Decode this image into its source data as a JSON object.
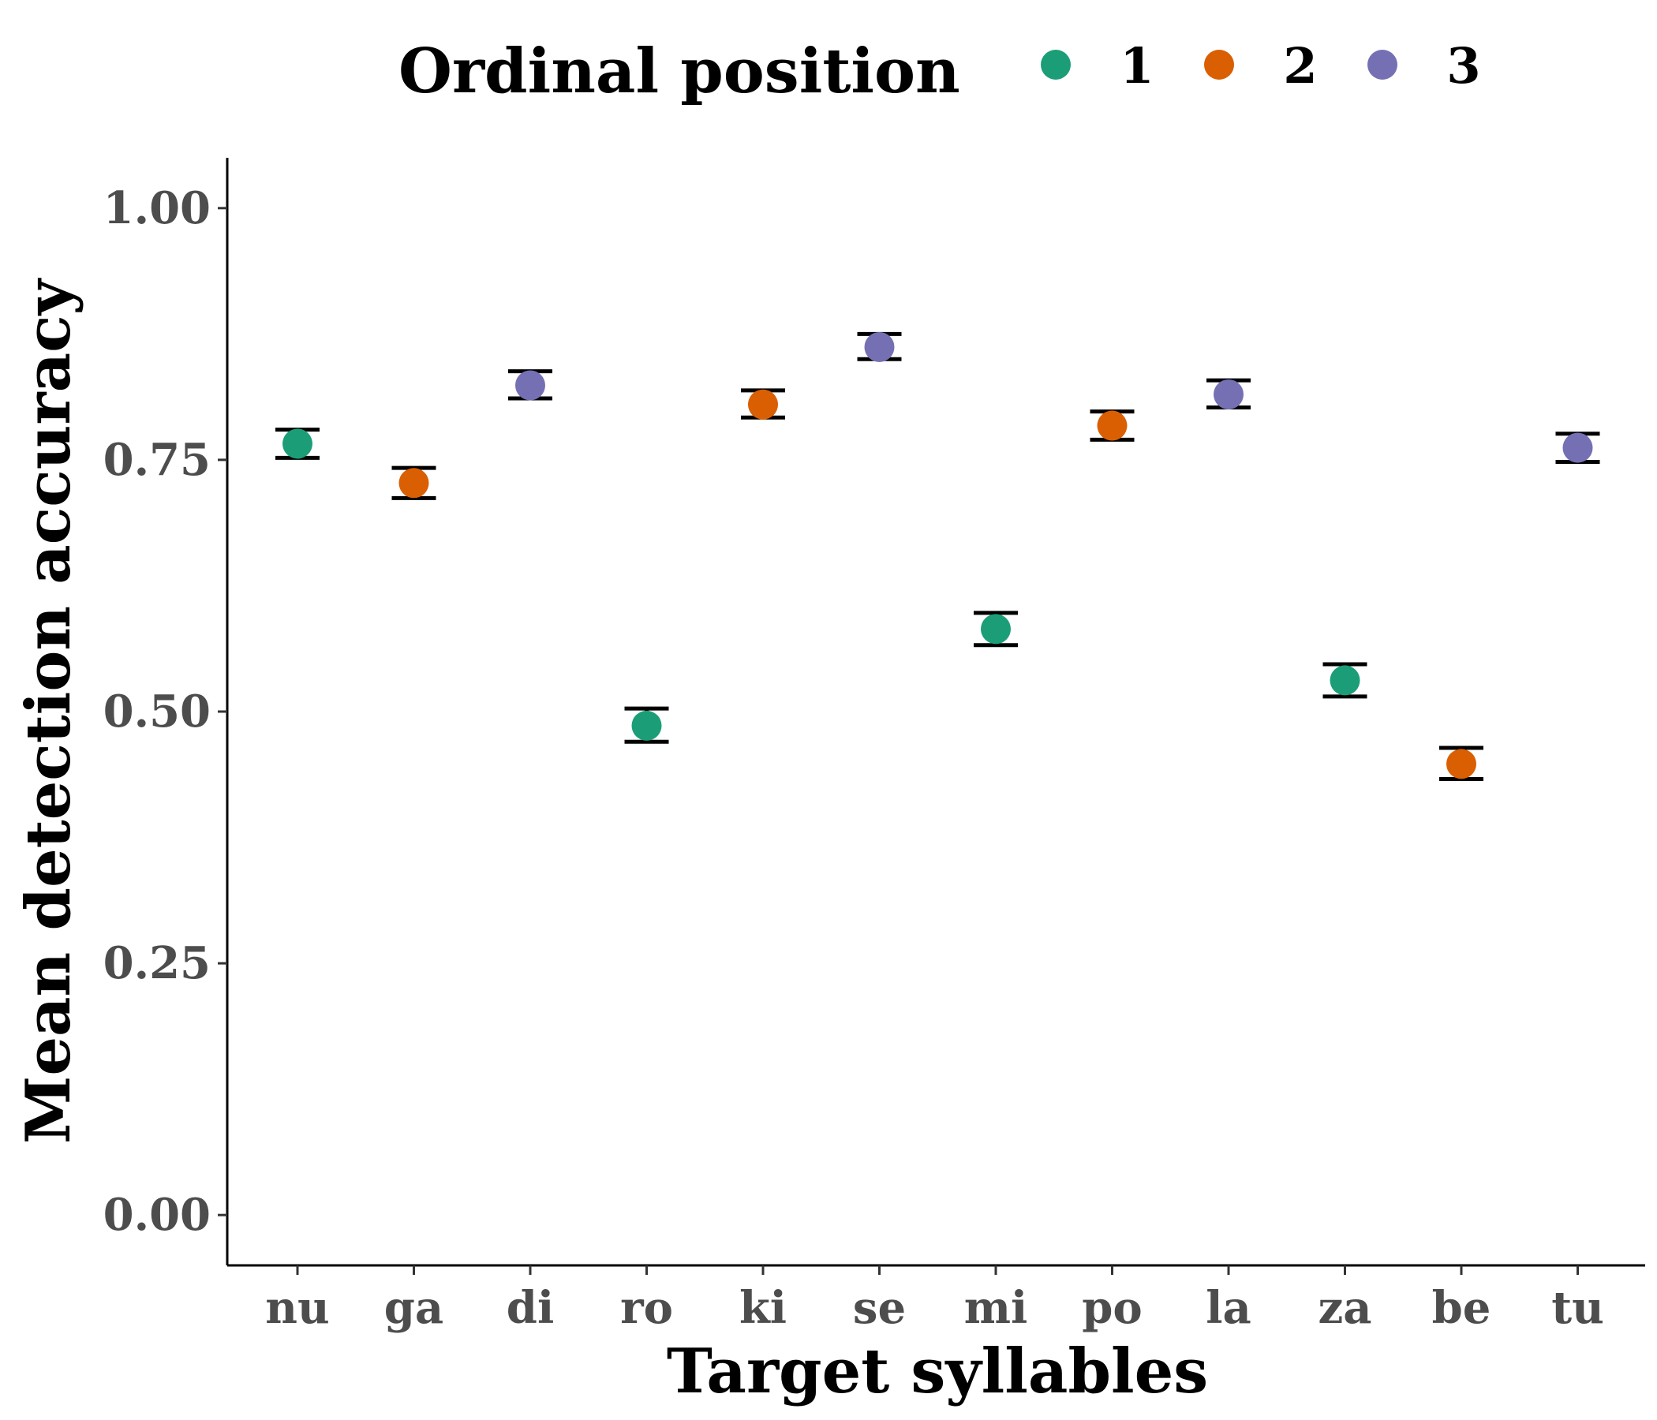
{
  "chart_data": {
    "type": "scatter",
    "xlabel": "Target syllables",
    "ylabel": "Mean detection accuracy",
    "ylim": [
      -0.05,
      1.05
    ],
    "yticks": [
      "0.00",
      "0.25",
      "0.50",
      "0.75",
      "1.00"
    ],
    "ytick_values": [
      0,
      0.25,
      0.5,
      0.75,
      1.0
    ],
    "categories": [
      "nu",
      "ga",
      "di",
      "ro",
      "ki",
      "se",
      "mi",
      "po",
      "la",
      "za",
      "be",
      "tu"
    ],
    "grid": false,
    "legend": {
      "title": "Ordinal position",
      "placement": "top",
      "entries": [
        {
          "label": "1",
          "color": "#1b9e77"
        },
        {
          "label": "2",
          "color": "#d95f02"
        },
        {
          "label": "3",
          "color": "#7570b3"
        }
      ]
    },
    "points": [
      {
        "syllable": "nu",
        "position": "1",
        "mean": 0.766,
        "lower": 0.752,
        "upper": 0.78
      },
      {
        "syllable": "ga",
        "position": "2",
        "mean": 0.727,
        "lower": 0.712,
        "upper": 0.742
      },
      {
        "syllable": "di",
        "position": "3",
        "mean": 0.824,
        "lower": 0.811,
        "upper": 0.838
      },
      {
        "syllable": "ro",
        "position": "1",
        "mean": 0.486,
        "lower": 0.47,
        "upper": 0.503
      },
      {
        "syllable": "ki",
        "position": "2",
        "mean": 0.805,
        "lower": 0.792,
        "upper": 0.819
      },
      {
        "syllable": "se",
        "position": "3",
        "mean": 0.862,
        "lower": 0.85,
        "upper": 0.875
      },
      {
        "syllable": "mi",
        "position": "1",
        "mean": 0.582,
        "lower": 0.566,
        "upper": 0.598
      },
      {
        "syllable": "po",
        "position": "2",
        "mean": 0.784,
        "lower": 0.77,
        "upper": 0.798
      },
      {
        "syllable": "la",
        "position": "3",
        "mean": 0.815,
        "lower": 0.802,
        "upper": 0.829
      },
      {
        "syllable": "za",
        "position": "1",
        "mean": 0.531,
        "lower": 0.515,
        "upper": 0.547
      },
      {
        "syllable": "be",
        "position": "2",
        "mean": 0.448,
        "lower": 0.433,
        "upper": 0.464
      },
      {
        "syllable": "tu",
        "position": "3",
        "mean": 0.762,
        "lower": 0.748,
        "upper": 0.776
      }
    ]
  }
}
